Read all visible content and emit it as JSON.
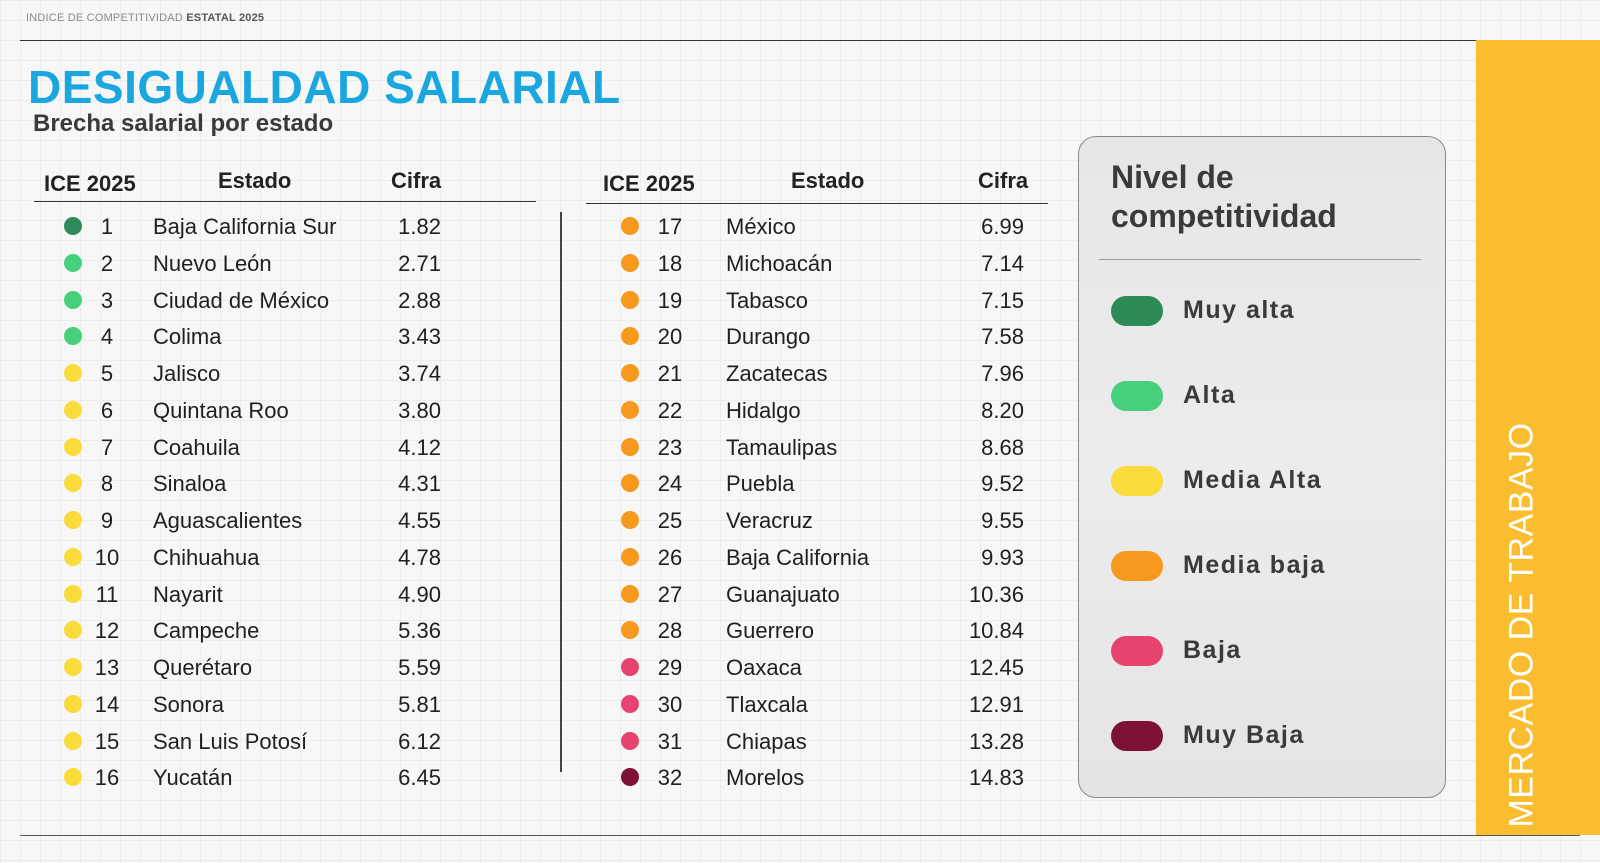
{
  "header": {
    "top_label_light": "INDICE DE COMPETITIVIDAD",
    "top_label_bold": "ESTATAL 2025",
    "title": "DESIGUALDAD SALARIAL",
    "subtitle": "Brecha salarial por estado"
  },
  "columns": {
    "rank": "ICE 2025",
    "state": "Estado",
    "value": "Cifra"
  },
  "colors": {
    "muy_alta": "#2e8b57",
    "alta": "#46d07c",
    "media_alta": "#fadb3c",
    "media_baja": "#f7981f",
    "baja": "#e6446e",
    "muy_baja": "#7d1235",
    "title": "#1aa7e0",
    "side_band": "#fbbd30"
  },
  "table_left": [
    {
      "rank": "1",
      "state": "Baja California Sur",
      "value": "1.82",
      "level": "muy_alta"
    },
    {
      "rank": "2",
      "state": "Nuevo León",
      "value": "2.71",
      "level": "alta"
    },
    {
      "rank": "3",
      "state": "Ciudad de México",
      "value": "2.88",
      "level": "alta"
    },
    {
      "rank": "4",
      "state": "Colima",
      "value": "3.43",
      "level": "alta"
    },
    {
      "rank": "5",
      "state": "Jalisco",
      "value": "3.74",
      "level": "media_alta"
    },
    {
      "rank": "6",
      "state": "Quintana Roo",
      "value": "3.80",
      "level": "media_alta"
    },
    {
      "rank": "7",
      "state": "Coahuila",
      "value": "4.12",
      "level": "media_alta"
    },
    {
      "rank": "8",
      "state": "Sinaloa",
      "value": "4.31",
      "level": "media_alta"
    },
    {
      "rank": "9",
      "state": "Aguascalientes",
      "value": "4.55",
      "level": "media_alta"
    },
    {
      "rank": "10",
      "state": "Chihuahua",
      "value": "4.78",
      "level": "media_alta"
    },
    {
      "rank": "11",
      "state": "Nayarit",
      "value": "4.90",
      "level": "media_alta"
    },
    {
      "rank": "12",
      "state": "Campeche",
      "value": "5.36",
      "level": "media_alta"
    },
    {
      "rank": "13",
      "state": "Querétaro",
      "value": "5.59",
      "level": "media_alta"
    },
    {
      "rank": "14",
      "state": "Sonora",
      "value": "5.81",
      "level": "media_alta"
    },
    {
      "rank": "15",
      "state": "San Luis Potosí",
      "value": "6.12",
      "level": "media_alta"
    },
    {
      "rank": "16",
      "state": "Yucatán",
      "value": "6.45",
      "level": "media_alta"
    }
  ],
  "table_right": [
    {
      "rank": "17",
      "state": "México",
      "value": "6.99",
      "level": "media_baja"
    },
    {
      "rank": "18",
      "state": "Michoacán",
      "value": "7.14",
      "level": "media_baja"
    },
    {
      "rank": "19",
      "state": "Tabasco",
      "value": "7.15",
      "level": "media_baja"
    },
    {
      "rank": "20",
      "state": "Durango",
      "value": "7.58",
      "level": "media_baja"
    },
    {
      "rank": "21",
      "state": "Zacatecas",
      "value": "7.96",
      "level": "media_baja"
    },
    {
      "rank": "22",
      "state": "Hidalgo",
      "value": "8.20",
      "level": "media_baja"
    },
    {
      "rank": "23",
      "state": "Tamaulipas",
      "value": "8.68",
      "level": "media_baja"
    },
    {
      "rank": "24",
      "state": "Puebla",
      "value": "9.52",
      "level": "media_baja"
    },
    {
      "rank": "25",
      "state": "Veracruz",
      "value": "9.55",
      "level": "media_baja"
    },
    {
      "rank": "26",
      "state": "Baja California",
      "value": "9.93",
      "level": "media_baja"
    },
    {
      "rank": "27",
      "state": "Guanajuato",
      "value": "10.36",
      "level": "media_baja"
    },
    {
      "rank": "28",
      "state": "Guerrero",
      "value": "10.84",
      "level": "media_baja"
    },
    {
      "rank": "29",
      "state": "Oaxaca",
      "value": "12.45",
      "level": "baja"
    },
    {
      "rank": "30",
      "state": "Tlaxcala",
      "value": "12.91",
      "level": "baja"
    },
    {
      "rank": "31",
      "state": "Chiapas",
      "value": "13.28",
      "level": "baja"
    },
    {
      "rank": "32",
      "state": "Morelos",
      "value": "14.83",
      "level": "muy_baja"
    }
  ],
  "legend": {
    "title": "Nivel de competitividad",
    "items": [
      {
        "label": "Muy alta",
        "level": "muy_alta"
      },
      {
        "label": "Alta",
        "level": "alta"
      },
      {
        "label": "Media Alta",
        "level": "media_alta"
      },
      {
        "label": "Media baja",
        "level": "media_baja"
      },
      {
        "label": "Baja",
        "level": "baja"
      },
      {
        "label": "Muy Baja",
        "level": "muy_baja"
      }
    ]
  },
  "side_label": "MERCADO DE TRABAJO"
}
